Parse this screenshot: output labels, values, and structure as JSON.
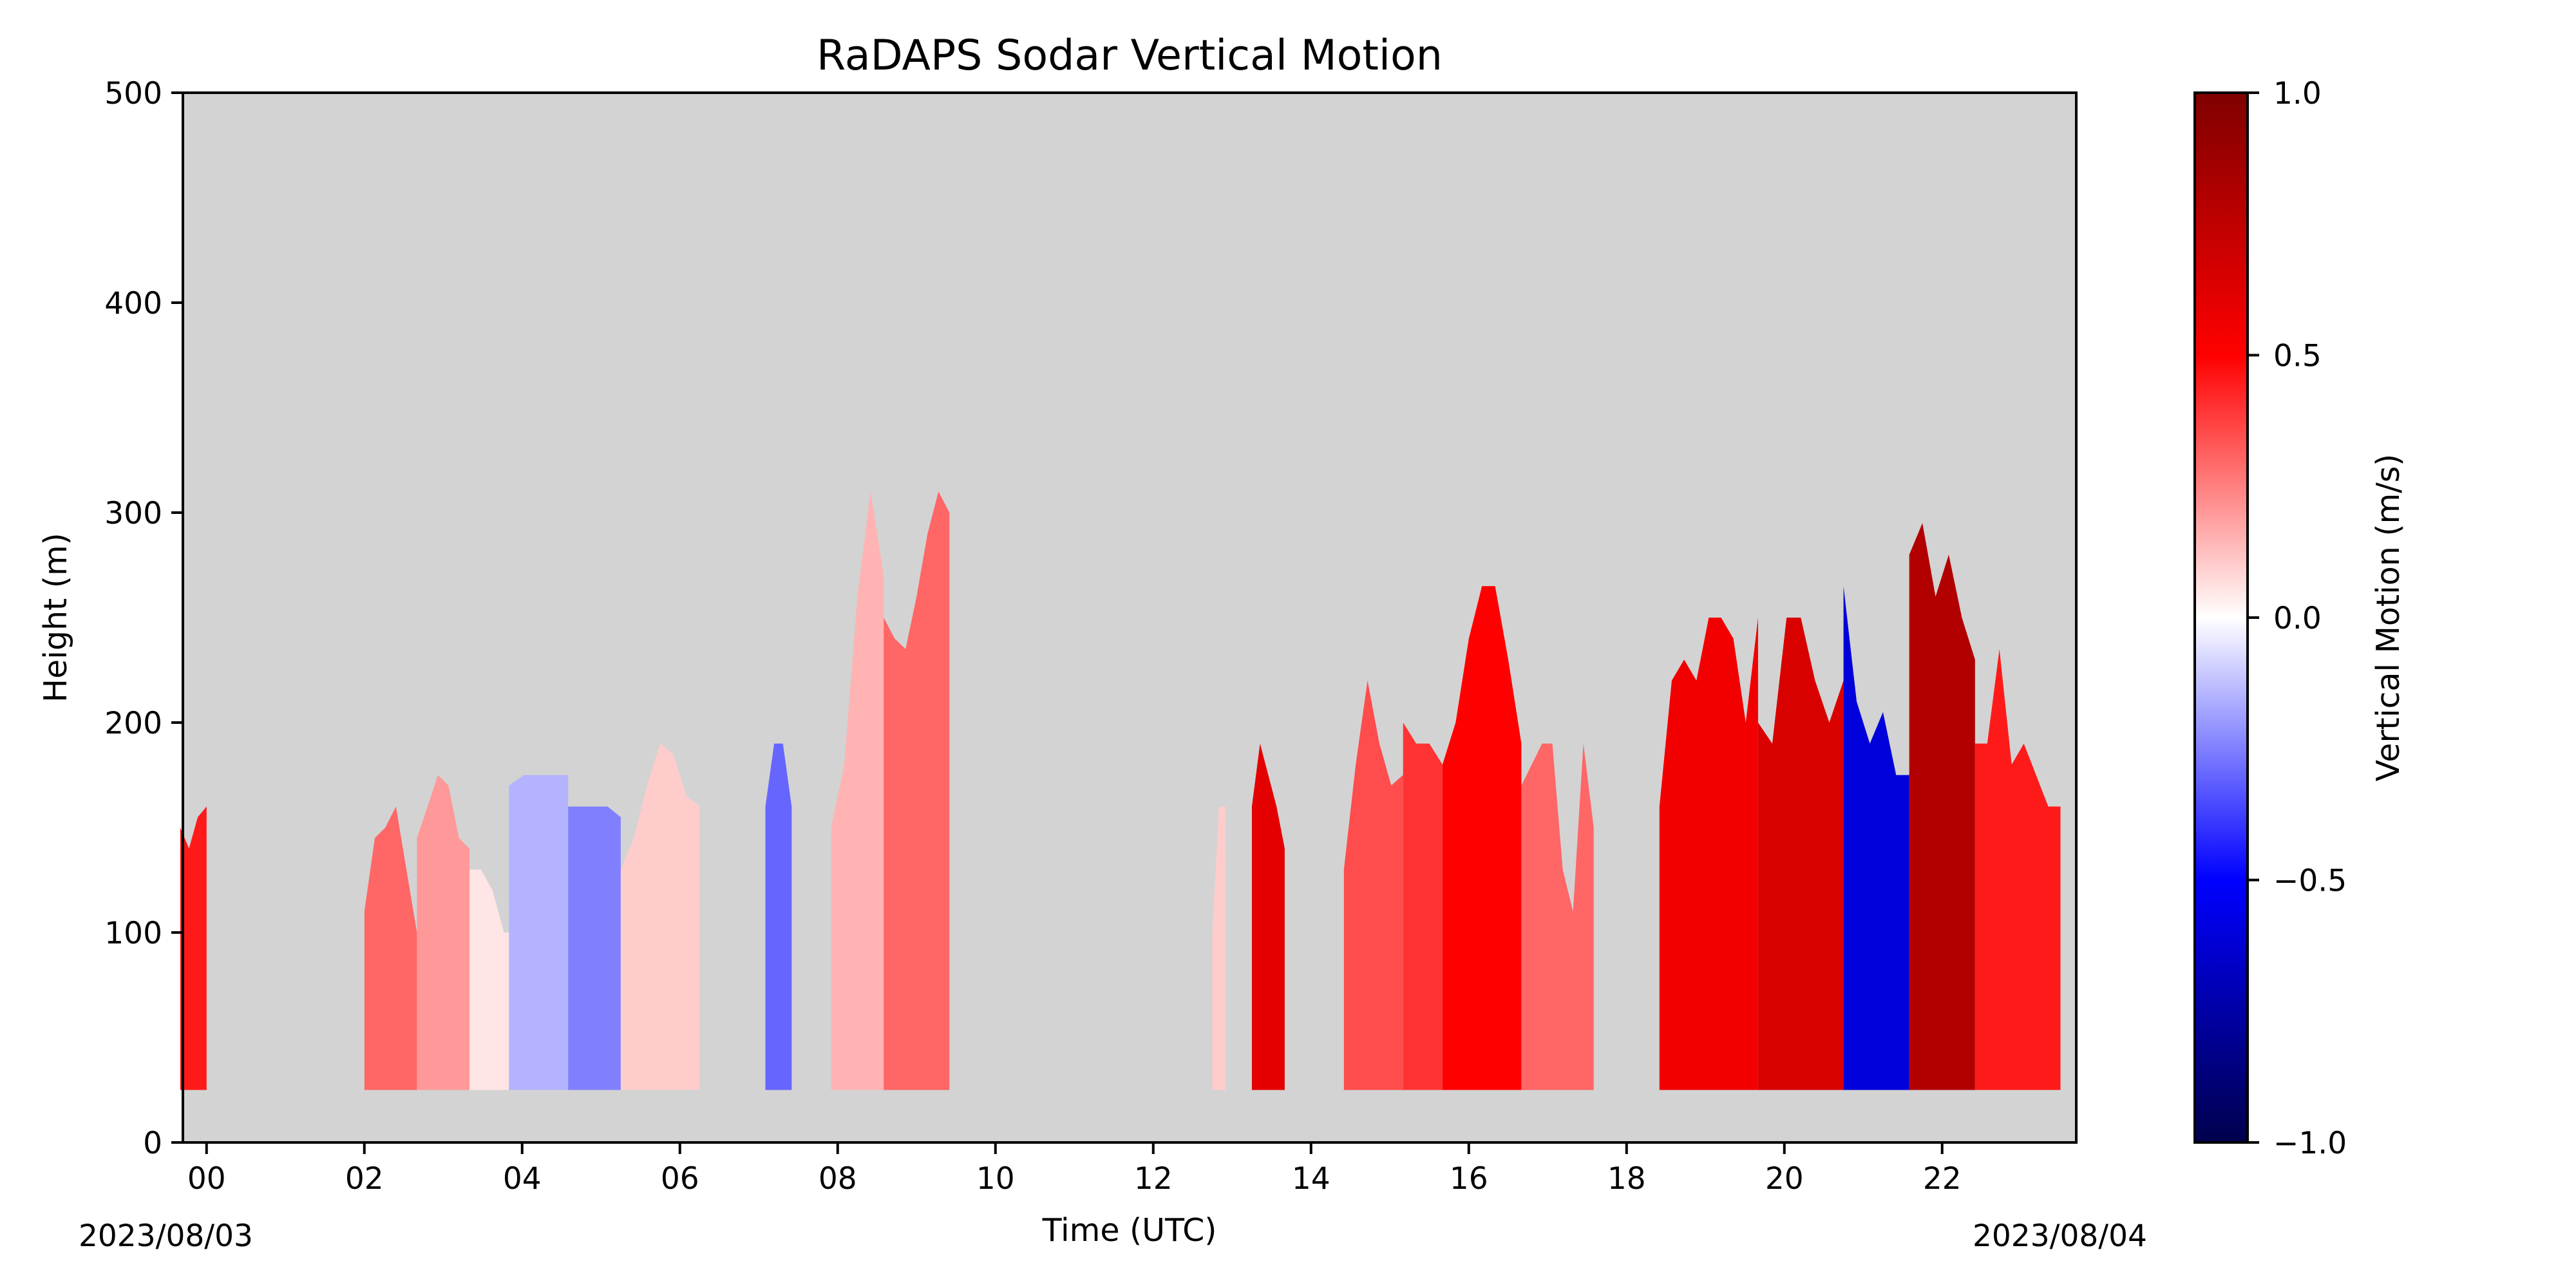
{
  "chart_data": {
    "type": "heatmap",
    "title": "RaDAPS Sodar Vertical Motion",
    "xlabel": "Time (UTC)",
    "ylabel": "Height (m)",
    "date_start_label": "2023/08/03",
    "date_end_label": "2023/08/04",
    "x_range_hours_utc": [
      -0.3,
      23.7
    ],
    "x_ticks": [
      "00",
      "02",
      "04",
      "06",
      "08",
      "10",
      "12",
      "14",
      "16",
      "18",
      "20",
      "22"
    ],
    "ylim": [
      0,
      500
    ],
    "y_ticks": [
      0,
      100,
      200,
      300,
      400,
      500
    ],
    "background_color": "#d3d3d3",
    "colorbar": {
      "label": "Vertical Motion (m/s)",
      "range": [
        -1.0,
        1.0
      ],
      "ticks": [
        "1.0",
        "0.5",
        "0.0",
        "−0.5",
        "−1.0"
      ],
      "colormap": "seismic",
      "stops": [
        "#00004c",
        "#0000ff",
        "#ffffff",
        "#ff0000",
        "#7f0000"
      ]
    },
    "data_floor_m": 25,
    "segments": [
      {
        "start_utc": "23:40",
        "end_utc": "00:00",
        "height_profile_m": [
          150,
          140,
          155,
          160
        ],
        "mean_vertical_motion_ms": 0.45
      },
      {
        "start_utc": "02:00",
        "end_utc": "02:40",
        "height_profile_m": [
          110,
          145,
          150,
          160,
          130,
          100
        ],
        "mean_vertical_motion_ms": 0.3
      },
      {
        "start_utc": "02:40",
        "end_utc": "03:20",
        "height_profile_m": [
          145,
          160,
          175,
          170,
          145,
          140
        ],
        "mean_vertical_motion_ms": 0.2
      },
      {
        "start_utc": "03:20",
        "end_utc": "03:55",
        "height_profile_m": [
          130,
          130,
          120,
          100,
          100
        ],
        "mean_vertical_motion_ms": 0.05
      },
      {
        "start_utc": "03:50",
        "end_utc": "04:35",
        "height_profile_m": [
          170,
          175,
          175,
          175,
          175
        ],
        "mean_vertical_motion_ms": -0.15
      },
      {
        "start_utc": "04:35",
        "end_utc": "05:15",
        "height_profile_m": [
          160,
          160,
          160,
          160,
          155
        ],
        "mean_vertical_motion_ms": -0.25
      },
      {
        "start_utc": "05:15",
        "end_utc": "06:15",
        "height_profile_m": [
          130,
          145,
          170,
          190,
          185,
          165,
          160
        ],
        "mean_vertical_motion_ms": 0.1
      },
      {
        "start_utc": "07:05",
        "end_utc": "07:25",
        "height_profile_m": [
          160,
          190,
          190,
          160
        ],
        "mean_vertical_motion_ms": -0.3
      },
      {
        "start_utc": "07:55",
        "end_utc": "08:35",
        "height_profile_m": [
          150,
          180,
          260,
          310,
          270
        ],
        "mean_vertical_motion_ms": 0.15
      },
      {
        "start_utc": "08:35",
        "end_utc": "09:25",
        "height_profile_m": [
          250,
          240,
          235,
          260,
          290,
          310,
          300
        ],
        "mean_vertical_motion_ms": 0.3
      },
      {
        "start_utc": "12:45",
        "end_utc": "12:55",
        "height_profile_m": [
          100,
          160,
          160
        ],
        "mean_vertical_motion_ms": 0.1
      },
      {
        "start_utc": "13:15",
        "end_utc": "13:40",
        "height_profile_m": [
          160,
          190,
          175,
          160,
          140
        ],
        "mean_vertical_motion_ms": 0.6
      },
      {
        "start_utc": "14:25",
        "end_utc": "15:10",
        "height_profile_m": [
          130,
          180,
          220,
          190,
          170,
          175
        ],
        "mean_vertical_motion_ms": 0.35
      },
      {
        "start_utc": "15:10",
        "end_utc": "15:40",
        "height_profile_m": [
          200,
          190,
          190,
          180
        ],
        "mean_vertical_motion_ms": 0.4
      },
      {
        "start_utc": "15:40",
        "end_utc": "16:40",
        "height_profile_m": [
          180,
          200,
          240,
          265,
          265,
          230,
          190
        ],
        "mean_vertical_motion_ms": 0.5
      },
      {
        "start_utc": "16:40",
        "end_utc": "17:35",
        "height_profile_m": [
          170,
          180,
          190,
          190,
          130,
          110,
          190,
          150
        ],
        "mean_vertical_motion_ms": 0.3
      },
      {
        "start_utc": "18:25",
        "end_utc": "19:40",
        "height_profile_m": [
          160,
          220,
          230,
          220,
          250,
          250,
          240,
          200,
          250
        ],
        "mean_vertical_motion_ms": 0.55
      },
      {
        "start_utc": "19:40",
        "end_utc": "20:45",
        "height_profile_m": [
          200,
          190,
          250,
          250,
          220,
          200,
          220
        ],
        "mean_vertical_motion_ms": 0.65
      },
      {
        "start_utc": "20:45",
        "end_utc": "21:35",
        "height_profile_m": [
          265,
          210,
          190,
          205,
          175,
          175
        ],
        "mean_vertical_motion_ms": -0.6
      },
      {
        "start_utc": "21:35",
        "end_utc": "22:25",
        "height_profile_m": [
          280,
          295,
          260,
          280,
          250,
          230
        ],
        "mean_vertical_motion_ms": 0.8
      },
      {
        "start_utc": "22:25",
        "end_utc": "23:30",
        "height_profile_m": [
          190,
          190,
          235,
          180,
          190,
          175,
          160,
          160
        ],
        "mean_vertical_motion_ms": 0.45
      }
    ]
  }
}
